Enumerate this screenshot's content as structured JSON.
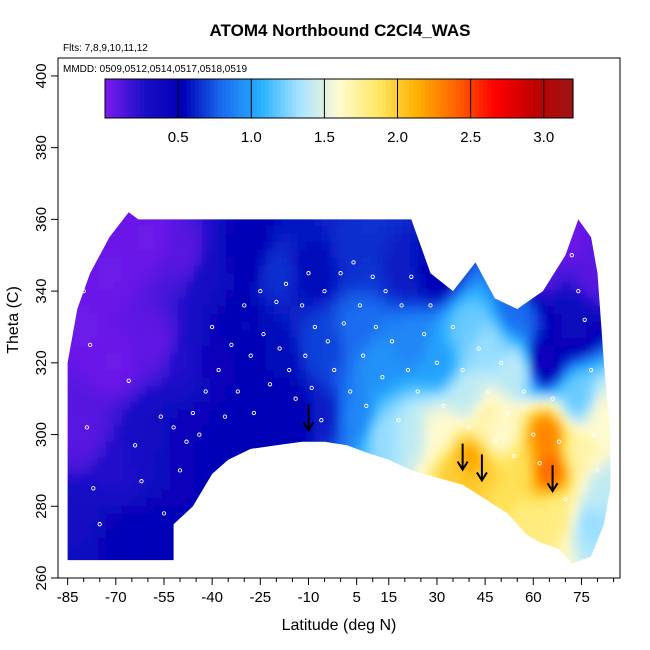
{
  "chart_data": {
    "type": "heatmap",
    "title": "ATOM4 Northbound C2Cl4_WAS",
    "annotations": [
      "Flts: 7,8,9,10,11,12",
      "MMDD: 0509,0512,0514,0517,0518,0519"
    ],
    "xlabel": "Latitude (deg N)",
    "ylabel": "Theta (C)",
    "xlim": [
      -88,
      87
    ],
    "ylim": [
      260,
      405
    ],
    "x_ticks": [
      -85,
      -70,
      -55,
      -40,
      -25,
      -10,
      5,
      15,
      30,
      45,
      60,
      75
    ],
    "y_ticks": [
      260,
      280,
      300,
      320,
      340,
      360,
      380,
      400
    ],
    "colorbar": {
      "range": [
        0,
        3.2
      ],
      "ticks": [
        0.5,
        1.0,
        1.5,
        2.0,
        2.5,
        3.0
      ],
      "tick_labels": [
        "0.5",
        "1.0",
        "1.5",
        "2.0",
        "2.5",
        "3.0"
      ],
      "colors": [
        "#7f1cf0",
        "#1a0fc8",
        "#0000b5",
        "#1a6cf0",
        "#2ab0ff",
        "#a8e4ff",
        "#fffad0",
        "#ffe866",
        "#ffb000",
        "#ff6400",
        "#ff0000",
        "#c00000",
        "#9b1515"
      ]
    },
    "domain_outline": [
      [
        -85,
        265
      ],
      [
        -85,
        320
      ],
      [
        -82,
        335
      ],
      [
        -78,
        345
      ],
      [
        -72,
        355
      ],
      [
        -66,
        362
      ],
      [
        -63,
        360
      ],
      [
        5,
        360
      ],
      [
        22,
        360
      ],
      [
        28,
        345
      ],
      [
        35,
        340
      ],
      [
        42,
        348
      ],
      [
        48,
        338
      ],
      [
        55,
        335
      ],
      [
        63,
        340
      ],
      [
        70,
        350
      ],
      [
        74,
        360
      ],
      [
        78,
        355
      ],
      [
        80,
        345
      ],
      [
        82,
        320
      ],
      [
        84,
        300
      ],
      [
        84,
        285
      ],
      [
        82,
        275
      ],
      [
        78,
        266
      ],
      [
        72,
        264
      ],
      [
        68,
        268
      ],
      [
        62,
        270
      ],
      [
        58,
        272
      ],
      [
        52,
        278
      ],
      [
        45,
        282
      ],
      [
        38,
        286
      ],
      [
        30,
        288
      ],
      [
        22,
        290
      ],
      [
        15,
        293
      ],
      [
        8,
        295
      ],
      [
        2,
        297
      ],
      [
        -5,
        298
      ],
      [
        -12,
        298
      ],
      [
        -20,
        297
      ],
      [
        -28,
        296
      ],
      [
        -35,
        293
      ],
      [
        -40,
        289
      ],
      [
        -46,
        280
      ],
      [
        -52,
        275
      ],
      [
        -52,
        265
      ]
    ],
    "concentration_samples": [
      {
        "lat": -80,
        "theta": 330,
        "value": 0.05
      },
      {
        "lat": -80,
        "theta": 300,
        "value": 0.1
      },
      {
        "lat": -80,
        "theta": 275,
        "value": 0.35
      },
      {
        "lat": -72,
        "theta": 345,
        "value": 0.05
      },
      {
        "lat": -70,
        "theta": 320,
        "value": 0.05
      },
      {
        "lat": -70,
        "theta": 290,
        "value": 0.25
      },
      {
        "lat": -68,
        "theta": 270,
        "value": 0.5
      },
      {
        "lat": -60,
        "theta": 355,
        "value": 0.05
      },
      {
        "lat": -58,
        "theta": 325,
        "value": 0.08
      },
      {
        "lat": -58,
        "theta": 300,
        "value": 0.35
      },
      {
        "lat": -56,
        "theta": 270,
        "value": 0.5
      },
      {
        "lat": -48,
        "theta": 350,
        "value": 0.1
      },
      {
        "lat": -48,
        "theta": 320,
        "value": 0.25
      },
      {
        "lat": -48,
        "theta": 300,
        "value": 0.45
      },
      {
        "lat": -40,
        "theta": 345,
        "value": 0.35
      },
      {
        "lat": -40,
        "theta": 320,
        "value": 0.45
      },
      {
        "lat": -40,
        "theta": 295,
        "value": 0.5
      },
      {
        "lat": -30,
        "theta": 350,
        "value": 0.5
      },
      {
        "lat": -30,
        "theta": 330,
        "value": 0.55
      },
      {
        "lat": -30,
        "theta": 305,
        "value": 0.5
      },
      {
        "lat": -20,
        "theta": 345,
        "value": 0.65
      },
      {
        "lat": -20,
        "theta": 320,
        "value": 0.55
      },
      {
        "lat": -15,
        "theta": 305,
        "value": 0.5
      },
      {
        "lat": -8,
        "theta": 345,
        "value": 0.55
      },
      {
        "lat": -5,
        "theta": 325,
        "value": 0.7
      },
      {
        "lat": -5,
        "theta": 305,
        "value": 0.6
      },
      {
        "lat": 5,
        "theta": 350,
        "value": 0.65
      },
      {
        "lat": 5,
        "theta": 330,
        "value": 0.8
      },
      {
        "lat": 5,
        "theta": 305,
        "value": 0.9
      },
      {
        "lat": 12,
        "theta": 320,
        "value": 0.95
      },
      {
        "lat": 14,
        "theta": 300,
        "value": 1.3
      },
      {
        "lat": 20,
        "theta": 345,
        "value": 0.6
      },
      {
        "lat": 22,
        "theta": 325,
        "value": 0.9
      },
      {
        "lat": 22,
        "theta": 300,
        "value": 1.4
      },
      {
        "lat": 30,
        "theta": 345,
        "value": 0.5
      },
      {
        "lat": 30,
        "theta": 320,
        "value": 1.0
      },
      {
        "lat": 30,
        "theta": 300,
        "value": 1.6
      },
      {
        "lat": 36,
        "theta": 290,
        "value": 2.0
      },
      {
        "lat": 40,
        "theta": 330,
        "value": 1.2
      },
      {
        "lat": 40,
        "theta": 310,
        "value": 1.4
      },
      {
        "lat": 40,
        "theta": 293,
        "value": 2.2
      },
      {
        "lat": 45,
        "theta": 325,
        "value": 1.3
      },
      {
        "lat": 45,
        "theta": 305,
        "value": 1.7
      },
      {
        "lat": 45,
        "theta": 288,
        "value": 2.0
      },
      {
        "lat": 50,
        "theta": 300,
        "value": 1.6
      },
      {
        "lat": 50,
        "theta": 282,
        "value": 1.9
      },
      {
        "lat": 55,
        "theta": 335,
        "value": 0.8
      },
      {
        "lat": 55,
        "theta": 318,
        "value": 1.4
      },
      {
        "lat": 55,
        "theta": 290,
        "value": 1.9
      },
      {
        "lat": 58,
        "theta": 275,
        "value": 1.8
      },
      {
        "lat": 62,
        "theta": 345,
        "value": 0.1
      },
      {
        "lat": 63,
        "theta": 320,
        "value": 0.4
      },
      {
        "lat": 64,
        "theta": 300,
        "value": 2.3
      },
      {
        "lat": 65,
        "theta": 290,
        "value": 2.4
      },
      {
        "lat": 67,
        "theta": 278,
        "value": 1.8
      },
      {
        "lat": 70,
        "theta": 355,
        "value": 0.05
      },
      {
        "lat": 72,
        "theta": 330,
        "value": 0.4
      },
      {
        "lat": 74,
        "theta": 310,
        "value": 1.2
      },
      {
        "lat": 75,
        "theta": 295,
        "value": 1.7
      },
      {
        "lat": 78,
        "theta": 275,
        "value": 1.3
      },
      {
        "lat": 80,
        "theta": 345,
        "value": 0.1
      },
      {
        "lat": 82,
        "theta": 305,
        "value": 1.6
      },
      {
        "lat": 82,
        "theta": 285,
        "value": 1.4
      }
    ],
    "arrows": [
      {
        "lat": -10,
        "theta": 304
      },
      {
        "lat": 38,
        "theta": 293
      },
      {
        "lat": 44,
        "theta": 290
      },
      {
        "lat": 66,
        "theta": 287
      }
    ],
    "sample_points": [
      [
        -80,
        340
      ],
      [
        -78,
        325
      ],
      [
        -79,
        302
      ],
      [
        -77,
        285
      ],
      [
        -75,
        275
      ],
      [
        -66,
        315
      ],
      [
        -64,
        297
      ],
      [
        -62,
        287
      ],
      [
        -56,
        305
      ],
      [
        -55,
        278
      ],
      [
        -52,
        302
      ],
      [
        -50,
        290
      ],
      [
        -48,
        298
      ],
      [
        -46,
        306
      ],
      [
        -44,
        300
      ],
      [
        -42,
        312
      ],
      [
        -40,
        330
      ],
      [
        -38,
        318
      ],
      [
        -36,
        305
      ],
      [
        -34,
        325
      ],
      [
        -32,
        312
      ],
      [
        -30,
        336
      ],
      [
        -28,
        322
      ],
      [
        -27,
        306
      ],
      [
        -25,
        340
      ],
      [
        -24,
        328
      ],
      [
        -22,
        314
      ],
      [
        -20,
        337
      ],
      [
        -19,
        324
      ],
      [
        -17,
        342
      ],
      [
        -16,
        318
      ],
      [
        -14,
        310
      ],
      [
        -12,
        336
      ],
      [
        -11,
        322
      ],
      [
        -10,
        345
      ],
      [
        -9,
        313
      ],
      [
        -8,
        330
      ],
      [
        -6,
        304
      ],
      [
        -5,
        340
      ],
      [
        -4,
        326
      ],
      [
        -2,
        318
      ],
      [
        0,
        345
      ],
      [
        1,
        331
      ],
      [
        3,
        312
      ],
      [
        4,
        348
      ],
      [
        6,
        336
      ],
      [
        7,
        322
      ],
      [
        8,
        308
      ],
      [
        10,
        344
      ],
      [
        11,
        330
      ],
      [
        13,
        316
      ],
      [
        14,
        340
      ],
      [
        16,
        326
      ],
      [
        18,
        304
      ],
      [
        19,
        336
      ],
      [
        21,
        318
      ],
      [
        22,
        344
      ],
      [
        24,
        312
      ],
      [
        26,
        328
      ],
      [
        28,
        336
      ],
      [
        30,
        320
      ],
      [
        32,
        308
      ],
      [
        35,
        330
      ],
      [
        38,
        318
      ],
      [
        40,
        302
      ],
      [
        43,
        324
      ],
      [
        46,
        312
      ],
      [
        48,
        298
      ],
      [
        50,
        320
      ],
      [
        52,
        306
      ],
      [
        54,
        294
      ],
      [
        57,
        312
      ],
      [
        60,
        300
      ],
      [
        62,
        292
      ],
      [
        66,
        310
      ],
      [
        68,
        298
      ],
      [
        70,
        282
      ],
      [
        72,
        350
      ],
      [
        74,
        340
      ],
      [
        76,
        332
      ],
      [
        78,
        318
      ],
      [
        79,
        300
      ],
      [
        80,
        290
      ]
    ]
  }
}
